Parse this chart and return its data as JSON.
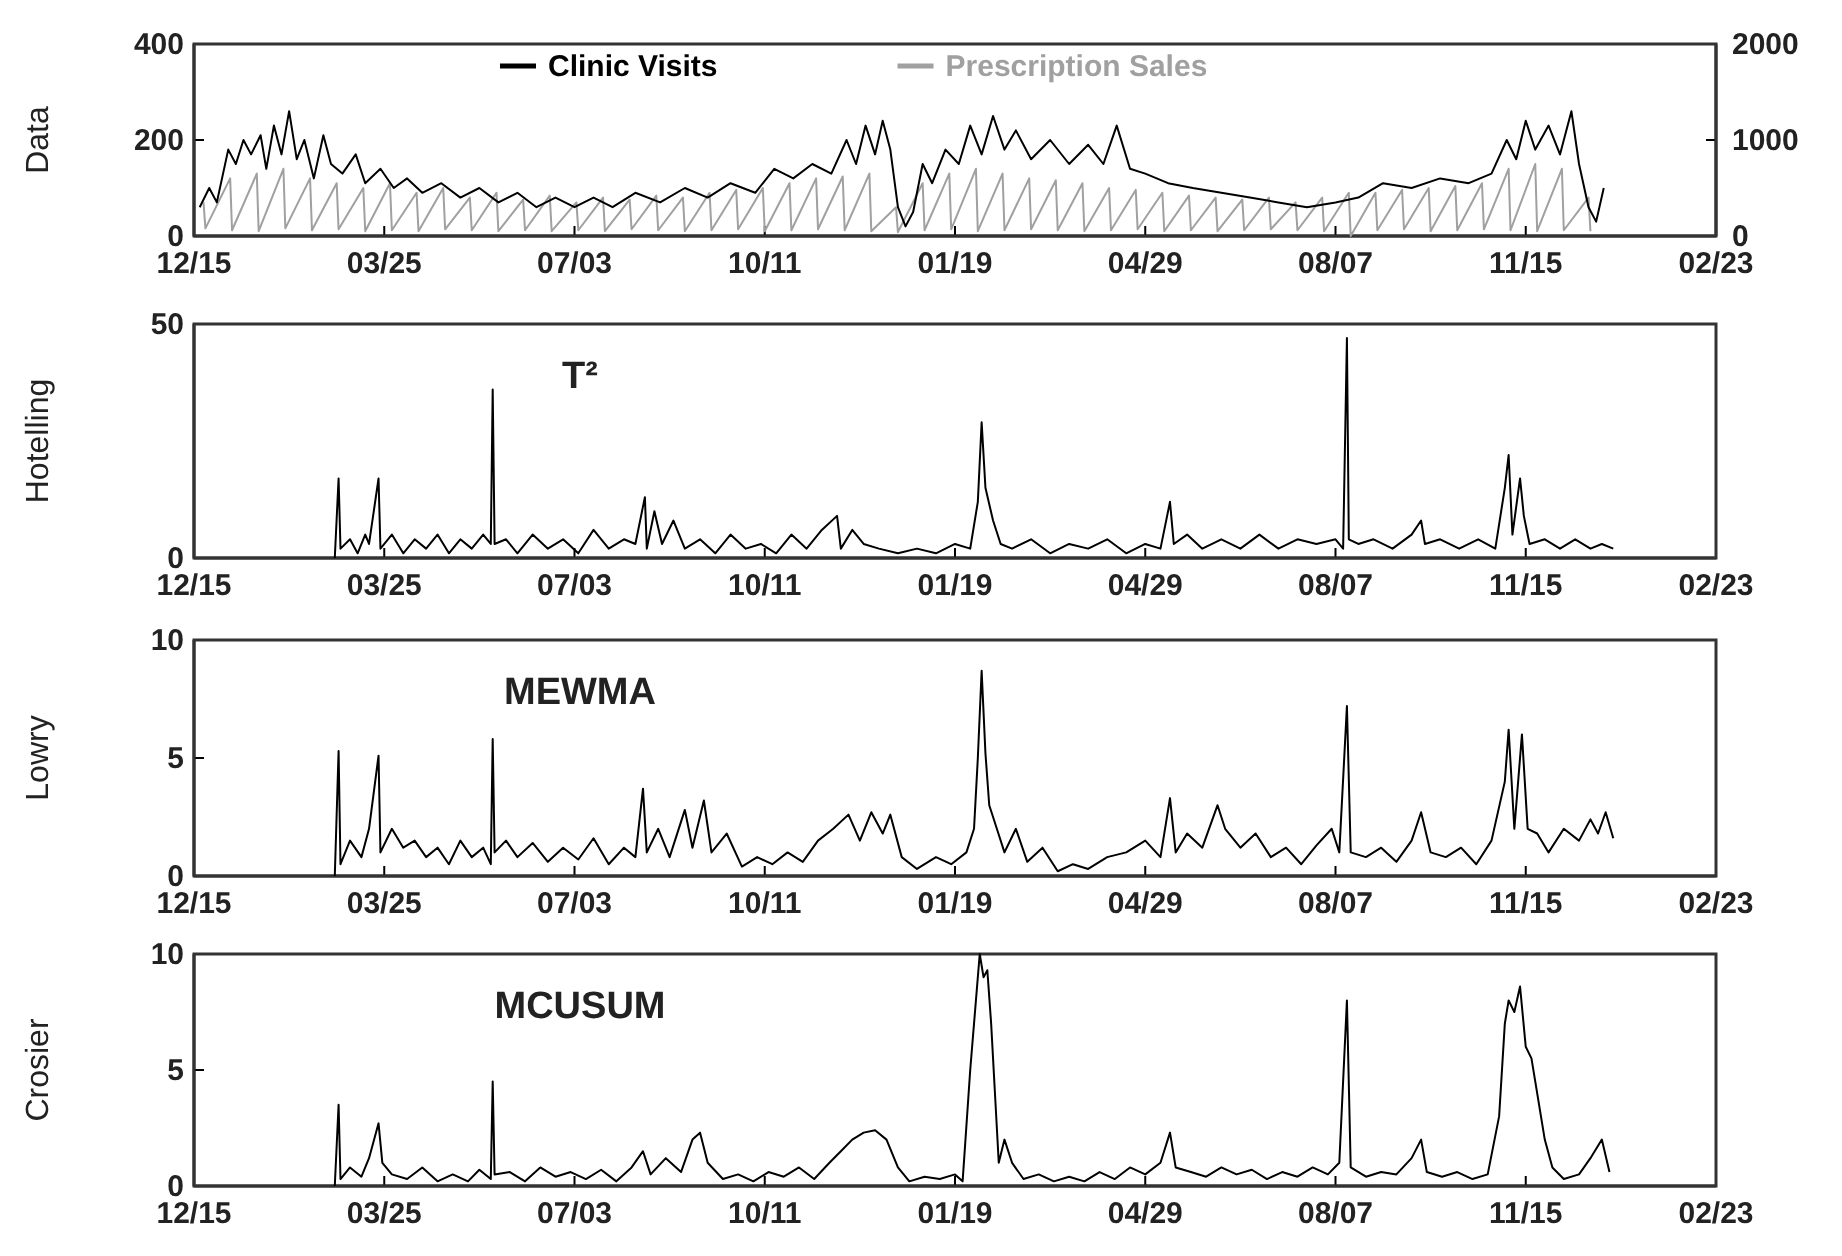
{
  "chart_data": [
    {
      "type": "line",
      "ylabel": "Data",
      "legend": "top",
      "xlim": [
        "2000-12-15",
        "2003-02-23"
      ],
      "xticks": [
        {
          "value": "2000-12-15",
          "label": "12/15"
        },
        {
          "value": "2001-03-25",
          "label": "03/25"
        },
        {
          "value": "2001-07-03",
          "label": "07/03"
        },
        {
          "value": "2001-10-11",
          "label": "10/11"
        },
        {
          "value": "2002-01-19",
          "label": "01/19"
        },
        {
          "value": "2002-04-29",
          "label": "04/29"
        },
        {
          "value": "2002-08-07",
          "label": "08/07"
        },
        {
          "value": "2002-11-15",
          "label": "11/15"
        },
        {
          "value": "2003-02-23",
          "label": "02/23"
        }
      ],
      "ylim": [
        0,
        400
      ],
      "yticks": [
        0,
        200,
        400
      ],
      "y2lim": [
        0,
        2000
      ],
      "y2ticks": [
        0,
        1000,
        2000
      ],
      "series": [
        {
          "name": "Prescription Sales",
          "color": "#a0a0a0",
          "axis": "y2",
          "x": [
            "2000-12-20",
            "2000-12-21",
            "2001-01-03",
            "2001-01-04",
            "2001-01-17",
            "2001-01-18",
            "2001-01-31",
            "2001-02-01",
            "2001-02-14",
            "2001-02-15",
            "2001-02-28",
            "2001-03-01",
            "2001-03-14",
            "2001-03-15",
            "2001-03-28",
            "2001-03-29",
            "2001-04-11",
            "2001-04-12",
            "2001-04-25",
            "2001-04-26",
            "2001-05-09",
            "2001-05-10",
            "2001-05-23",
            "2001-05-24",
            "2001-06-06",
            "2001-06-07",
            "2001-06-20",
            "2001-06-21",
            "2001-07-04",
            "2001-07-05",
            "2001-07-18",
            "2001-07-19",
            "2001-08-01",
            "2001-08-02",
            "2001-08-15",
            "2001-08-16",
            "2001-08-29",
            "2001-08-30",
            "2001-09-12",
            "2001-09-13",
            "2001-09-26",
            "2001-09-27",
            "2001-10-10",
            "2001-10-11",
            "2001-10-24",
            "2001-10-25",
            "2001-11-07",
            "2001-11-08",
            "2001-11-21",
            "2001-11-22",
            "2001-12-05",
            "2001-12-06",
            "2001-12-19",
            "2001-12-20",
            "2002-01-02",
            "2002-01-03",
            "2002-01-16",
            "2002-01-17",
            "2002-01-30",
            "2002-01-31",
            "2002-02-13",
            "2002-02-14",
            "2002-02-27",
            "2002-02-28",
            "2002-03-13",
            "2002-03-14",
            "2002-03-27",
            "2002-03-28",
            "2002-04-10",
            "2002-04-11",
            "2002-04-24",
            "2002-04-25",
            "2002-05-08",
            "2002-05-09",
            "2002-05-22",
            "2002-05-23",
            "2002-06-05",
            "2002-06-06",
            "2002-06-19",
            "2002-06-20",
            "2002-07-03",
            "2002-07-04",
            "2002-07-17",
            "2002-07-18",
            "2002-07-31",
            "2002-08-01",
            "2002-08-14",
            "2002-08-15",
            "2002-08-28",
            "2002-08-29",
            "2002-09-11",
            "2002-09-12",
            "2002-09-25",
            "2002-09-26",
            "2002-10-09",
            "2002-10-10",
            "2002-10-23",
            "2002-10-24",
            "2002-11-06",
            "2002-11-07",
            "2002-11-20",
            "2002-11-21",
            "2002-12-04",
            "2002-12-05",
            "2002-12-18",
            "2002-12-19"
          ],
          "values": [
            350,
            80,
            600,
            60,
            650,
            50,
            700,
            80,
            600,
            60,
            550,
            70,
            500,
            50,
            550,
            60,
            450,
            50,
            500,
            70,
            400,
            60,
            450,
            50,
            380,
            60,
            420,
            50,
            350,
            60,
            400,
            50,
            380,
            70,
            420,
            60,
            400,
            50,
            450,
            60,
            480,
            70,
            500,
            50,
            550,
            60,
            600,
            70,
            620,
            60,
            650,
            50,
            300,
            40,
            550,
            60,
            650,
            70,
            700,
            50,
            650,
            60,
            600,
            70,
            580,
            60,
            550,
            50,
            500,
            60,
            480,
            70,
            450,
            50,
            420,
            60,
            400,
            50,
            380,
            60,
            400,
            70,
            350,
            60,
            400,
            50,
            450,
            0,
            450,
            60,
            480,
            70,
            500,
            50,
            520,
            60,
            550,
            70,
            700,
            60,
            750,
            50,
            700,
            60,
            400,
            50
          ]
        },
        {
          "name": "Clinic Visits",
          "color": "#000000",
          "x": [
            "2000-12-18",
            "2000-12-23",
            "2000-12-27",
            "2001-01-02",
            "2001-01-06",
            "2001-01-10",
            "2001-01-14",
            "2001-01-19",
            "2001-01-22",
            "2001-01-26",
            "2001-01-30",
            "2001-02-03",
            "2001-02-07",
            "2001-02-11",
            "2001-02-16",
            "2001-02-21",
            "2001-02-25",
            "2001-03-03",
            "2001-03-10",
            "2001-03-15",
            "2001-03-23",
            "2001-03-30",
            "2001-04-06",
            "2001-04-14",
            "2001-04-24",
            "2001-05-04",
            "2001-05-14",
            "2001-05-24",
            "2001-06-03",
            "2001-06-13",
            "2001-06-23",
            "2001-07-03",
            "2001-07-13",
            "2001-07-23",
            "2001-08-04",
            "2001-08-17",
            "2001-08-30",
            "2001-09-11",
            "2001-09-23",
            "2001-10-06",
            "2001-10-16",
            "2001-10-26",
            "2001-11-05",
            "2001-11-15",
            "2001-11-23",
            "2001-11-28",
            "2001-12-03",
            "2001-12-08",
            "2001-12-12",
            "2001-12-16",
            "2001-12-20",
            "2001-12-24",
            "2001-12-28",
            "2002-01-02",
            "2002-01-07",
            "2002-01-14",
            "2002-01-21",
            "2002-01-27",
            "2002-02-02",
            "2002-02-08",
            "2002-02-14",
            "2002-02-20",
            "2002-02-28",
            "2002-03-10",
            "2002-03-20",
            "2002-03-30",
            "2002-04-07",
            "2002-04-14",
            "2002-04-21",
            "2002-04-29",
            "2002-05-11",
            "2002-05-24",
            "2002-06-08",
            "2002-06-23",
            "2002-07-08",
            "2002-07-23",
            "2002-08-07",
            "2002-08-19",
            "2002-09-01",
            "2002-09-16",
            "2002-10-01",
            "2002-10-16",
            "2002-10-28",
            "2002-11-05",
            "2002-11-10",
            "2002-11-15",
            "2002-11-20",
            "2002-11-27",
            "2002-12-03",
            "2002-12-09",
            "2002-12-13",
            "2002-12-18",
            "2002-12-22",
            "2002-12-26"
          ],
          "values": [
            60,
            100,
            70,
            180,
            150,
            200,
            170,
            210,
            140,
            230,
            170,
            260,
            160,
            200,
            120,
            210,
            150,
            130,
            170,
            110,
            140,
            100,
            120,
            90,
            110,
            80,
            100,
            70,
            90,
            60,
            80,
            60,
            80,
            60,
            90,
            70,
            100,
            80,
            110,
            90,
            140,
            120,
            150,
            130,
            200,
            150,
            230,
            170,
            240,
            180,
            60,
            20,
            50,
            150,
            110,
            180,
            150,
            230,
            170,
            250,
            180,
            220,
            160,
            200,
            150,
            190,
            150,
            230,
            140,
            130,
            110,
            100,
            90,
            80,
            70,
            60,
            70,
            80,
            110,
            100,
            120,
            110,
            130,
            200,
            160,
            240,
            180,
            230,
            170,
            260,
            150,
            60,
            30,
            100
          ]
        }
      ]
    },
    {
      "type": "line",
      "ylabel": "Hotelling",
      "annotations": [
        "T²"
      ],
      "xlim": [
        "2000-12-15",
        "2003-02-23"
      ],
      "xticks": [
        {
          "value": "2000-12-15",
          "label": "12/15"
        },
        {
          "value": "2001-03-25",
          "label": "03/25"
        },
        {
          "value": "2001-07-03",
          "label": "07/03"
        },
        {
          "value": "2001-10-11",
          "label": "10/11"
        },
        {
          "value": "2002-01-19",
          "label": "01/19"
        },
        {
          "value": "2002-04-29",
          "label": "04/29"
        },
        {
          "value": "2002-08-07",
          "label": "08/07"
        },
        {
          "value": "2002-11-15",
          "label": "11/15"
        },
        {
          "value": "2003-02-23",
          "label": "02/23"
        }
      ],
      "ylim": [
        0,
        50
      ],
      "yticks": [
        0,
        50
      ],
      "series": [
        {
          "color": "#000000",
          "x": [
            "2001-02-27",
            "2001-03-01",
            "2001-03-02",
            "2001-03-07",
            "2001-03-11",
            "2001-03-15",
            "2001-03-17",
            "2001-03-22",
            "2001-03-23",
            "2001-03-29",
            "2001-04-04",
            "2001-04-10",
            "2001-04-16",
            "2001-04-22",
            "2001-04-28",
            "2001-05-04",
            "2001-05-10",
            "2001-05-16",
            "2001-05-20",
            "2001-05-21",
            "2001-05-22",
            "2001-05-28",
            "2001-06-03",
            "2001-06-11",
            "2001-06-19",
            "2001-06-27",
            "2001-07-05",
            "2001-07-13",
            "2001-07-21",
            "2001-07-29",
            "2001-08-04",
            "2001-08-09",
            "2001-08-10",
            "2001-08-14",
            "2001-08-18",
            "2001-08-24",
            "2001-08-30",
            "2001-09-07",
            "2001-09-15",
            "2001-09-23",
            "2001-10-01",
            "2001-10-09",
            "2001-10-17",
            "2001-10-25",
            "2001-11-02",
            "2001-11-10",
            "2001-11-18",
            "2001-11-20",
            "2001-11-26",
            "2001-12-02",
            "2001-12-10",
            "2001-12-20",
            "2001-12-30",
            "2002-01-09",
            "2002-01-19",
            "2002-01-27",
            "2002-01-31",
            "2002-02-02",
            "2002-02-04",
            "2002-02-08",
            "2002-02-12",
            "2002-02-18",
            "2002-02-28",
            "2002-03-10",
            "2002-03-20",
            "2002-03-30",
            "2002-04-09",
            "2002-04-19",
            "2002-04-29",
            "2002-05-07",
            "2002-05-12",
            "2002-05-14",
            "2002-05-21",
            "2002-05-29",
            "2002-06-08",
            "2002-06-18",
            "2002-06-28",
            "2002-07-08",
            "2002-07-18",
            "2002-07-28",
            "2002-08-07",
            "2002-08-11",
            "2002-08-13",
            "2002-08-14",
            "2002-08-19",
            "2002-08-27",
            "2002-09-06",
            "2002-09-16",
            "2002-09-21",
            "2002-09-23",
            "2002-10-01",
            "2002-10-11",
            "2002-10-21",
            "2002-10-30",
            "2002-11-04",
            "2002-11-06",
            "2002-11-08",
            "2002-11-12",
            "2002-11-14",
            "2002-11-17",
            "2002-11-25",
            "2002-12-03",
            "2002-12-11",
            "2002-12-19",
            "2002-12-25",
            "2002-12-31"
          ],
          "values": [
            0,
            17,
            2,
            4,
            1,
            5,
            3,
            17,
            2,
            5,
            1,
            4,
            2,
            5,
            1,
            4,
            2,
            5,
            3,
            36,
            3,
            4,
            1,
            5,
            2,
            4,
            1,
            6,
            2,
            4,
            3,
            13,
            2,
            10,
            3,
            8,
            2,
            4,
            1,
            5,
            2,
            3,
            1,
            5,
            2,
            6,
            9,
            2,
            6,
            3,
            2,
            1,
            2,
            1,
            3,
            2,
            12,
            29,
            15,
            8,
            3,
            2,
            4,
            1,
            3,
            2,
            4,
            1,
            3,
            2,
            12,
            3,
            5,
            2,
            4,
            2,
            5,
            2,
            4,
            3,
            4,
            2,
            47,
            4,
            3,
            4,
            2,
            5,
            8,
            3,
            4,
            2,
            4,
            2,
            15,
            22,
            5,
            17,
            9,
            3,
            4,
            2,
            4,
            2,
            3,
            2
          ]
        }
      ]
    },
    {
      "type": "line",
      "ylabel": "Lowry",
      "annotations": [
        "MEWMA"
      ],
      "xlim": [
        "2000-12-15",
        "2003-02-23"
      ],
      "xticks": [
        {
          "value": "2000-12-15",
          "label": "12/15"
        },
        {
          "value": "2001-03-25",
          "label": "03/25"
        },
        {
          "value": "2001-07-03",
          "label": "07/03"
        },
        {
          "value": "2001-10-11",
          "label": "10/11"
        },
        {
          "value": "2002-01-19",
          "label": "01/19"
        },
        {
          "value": "2002-04-29",
          "label": "04/29"
        },
        {
          "value": "2002-08-07",
          "label": "08/07"
        },
        {
          "value": "2002-11-15",
          "label": "11/15"
        },
        {
          "value": "2003-02-23",
          "label": "02/23"
        }
      ],
      "ylim": [
        0,
        10
      ],
      "yticks": [
        0,
        5,
        10
      ],
      "series": [
        {
          "color": "#000000",
          "x": [
            "2001-02-27",
            "2001-03-01",
            "2001-03-02",
            "2001-03-07",
            "2001-03-13",
            "2001-03-17",
            "2001-03-22",
            "2001-03-23",
            "2001-03-29",
            "2001-04-04",
            "2001-04-10",
            "2001-04-16",
            "2001-04-22",
            "2001-04-28",
            "2001-05-04",
            "2001-05-10",
            "2001-05-16",
            "2001-05-20",
            "2001-05-21",
            "2001-05-22",
            "2001-05-28",
            "2001-06-03",
            "2001-06-11",
            "2001-06-19",
            "2001-06-27",
            "2001-07-05",
            "2001-07-13",
            "2001-07-21",
            "2001-07-29",
            "2001-08-04",
            "2001-08-08",
            "2001-08-10",
            "2001-08-16",
            "2001-08-22",
            "2001-08-30",
            "2001-09-03",
            "2001-09-09",
            "2001-09-13",
            "2001-09-21",
            "2001-09-29",
            "2001-10-07",
            "2001-10-15",
            "2001-10-23",
            "2001-10-31",
            "2001-11-08",
            "2001-11-16",
            "2001-11-24",
            "2001-11-30",
            "2001-12-06",
            "2001-12-12",
            "2001-12-16",
            "2001-12-22",
            "2001-12-30",
            "2002-01-09",
            "2002-01-17",
            "2002-01-25",
            "2002-01-29",
            "2002-01-31",
            "2002-02-02",
            "2002-02-04",
            "2002-02-06",
            "2002-02-10",
            "2002-02-14",
            "2002-02-20",
            "2002-02-26",
            "2002-03-06",
            "2002-03-14",
            "2002-03-22",
            "2002-03-30",
            "2002-04-09",
            "2002-04-19",
            "2002-04-29",
            "2002-05-07",
            "2002-05-12",
            "2002-05-15",
            "2002-05-21",
            "2002-05-29",
            "2002-06-06",
            "2002-06-10",
            "2002-06-18",
            "2002-06-26",
            "2002-07-04",
            "2002-07-12",
            "2002-07-20",
            "2002-07-28",
            "2002-08-05",
            "2002-08-09",
            "2002-08-13",
            "2002-08-15",
            "2002-08-23",
            "2002-08-31",
            "2002-09-08",
            "2002-09-16",
            "2002-09-21",
            "2002-09-26",
            "2002-10-04",
            "2002-10-12",
            "2002-10-20",
            "2002-10-28",
            "2002-11-04",
            "2002-11-06",
            "2002-11-09",
            "2002-11-13",
            "2002-11-16",
            "2002-11-21",
            "2002-11-27",
            "2002-12-05",
            "2002-12-13",
            "2002-12-19",
            "2002-12-23",
            "2002-12-27",
            "2002-12-31"
          ],
          "values": [
            0,
            5.3,
            0.5,
            1.5,
            0.8,
            2,
            5.1,
            1,
            2,
            1.2,
            1.5,
            0.8,
            1.2,
            0.5,
            1.5,
            0.8,
            1.2,
            0.5,
            5.8,
            1,
            1.5,
            0.8,
            1.4,
            0.6,
            1.2,
            0.7,
            1.6,
            0.5,
            1.2,
            0.8,
            3.7,
            1,
            2,
            0.8,
            2.8,
            1.2,
            3.2,
            1,
            1.8,
            0.4,
            0.8,
            0.5,
            1,
            0.6,
            1.5,
            2,
            2.6,
            1.5,
            2.7,
            1.8,
            2.6,
            0.8,
            0.3,
            0.8,
            0.5,
            1,
            2,
            5,
            8.7,
            5.2,
            3,
            2,
            1,
            2,
            0.6,
            1.2,
            0.2,
            0.5,
            0.3,
            0.8,
            1,
            1.5,
            0.8,
            3.3,
            1,
            1.8,
            1.2,
            3,
            2,
            1.2,
            1.8,
            0.8,
            1.2,
            0.5,
            1.3,
            2,
            1,
            7.2,
            1,
            0.8,
            1.2,
            0.6,
            1.5,
            2.7,
            1,
            0.8,
            1.2,
            0.5,
            1.5,
            4,
            6.2,
            2,
            6,
            2,
            1.8,
            1,
            2,
            1.5,
            2.4,
            1.8,
            2.7,
            1.6
          ]
        }
      ]
    },
    {
      "type": "line",
      "ylabel": "Crosier",
      "annotations": [
        "MCUSUM"
      ],
      "xlim": [
        "2000-12-15",
        "2003-02-23"
      ],
      "xticks": [
        {
          "value": "2000-12-15",
          "label": "12/15"
        },
        {
          "value": "2001-03-25",
          "label": "03/25"
        },
        {
          "value": "2001-07-03",
          "label": "07/03"
        },
        {
          "value": "2001-10-11",
          "label": "10/11"
        },
        {
          "value": "2002-01-19",
          "label": "01/19"
        },
        {
          "value": "2002-04-29",
          "label": "04/29"
        },
        {
          "value": "2002-08-07",
          "label": "08/07"
        },
        {
          "value": "2002-11-15",
          "label": "11/15"
        },
        {
          "value": "2003-02-23",
          "label": "02/23"
        }
      ],
      "ylim": [
        0,
        10
      ],
      "yticks": [
        0,
        5,
        10
      ],
      "series": [
        {
          "color": "#000000",
          "x": [
            "2001-02-27",
            "2001-03-01",
            "2001-03-02",
            "2001-03-07",
            "2001-03-13",
            "2001-03-17",
            "2001-03-22",
            "2001-03-24",
            "2001-03-29",
            "2001-04-06",
            "2001-04-14",
            "2001-04-22",
            "2001-04-30",
            "2001-05-08",
            "2001-05-14",
            "2001-05-20",
            "2001-05-21",
            "2001-05-22",
            "2001-05-30",
            "2001-06-07",
            "2001-06-15",
            "2001-06-23",
            "2001-07-01",
            "2001-07-09",
            "2001-07-17",
            "2001-07-25",
            "2001-08-02",
            "2001-08-08",
            "2001-08-12",
            "2001-08-20",
            "2001-08-28",
            "2001-09-03",
            "2001-09-07",
            "2001-09-11",
            "2001-09-19",
            "2001-09-27",
            "2001-10-05",
            "2001-10-13",
            "2001-10-21",
            "2001-10-29",
            "2001-11-06",
            "2001-11-14",
            "2001-11-20",
            "2001-11-26",
            "2001-12-02",
            "2001-12-08",
            "2001-12-14",
            "2001-12-20",
            "2001-12-26",
            "2002-01-03",
            "2002-01-11",
            "2002-01-19",
            "2002-01-23",
            "2002-01-27",
            "2002-01-30",
            "2002-02-01",
            "2002-02-03",
            "2002-02-05",
            "2002-02-07",
            "2002-02-09",
            "2002-02-11",
            "2002-02-14",
            "2002-02-18",
            "2002-02-24",
            "2002-03-04",
            "2002-03-12",
            "2002-03-20",
            "2002-03-28",
            "2002-04-05",
            "2002-04-13",
            "2002-04-21",
            "2002-04-29",
            "2002-05-07",
            "2002-05-12",
            "2002-05-15",
            "2002-05-23",
            "2002-05-31",
            "2002-06-08",
            "2002-06-16",
            "2002-06-24",
            "2002-07-02",
            "2002-07-10",
            "2002-07-18",
            "2002-07-26",
            "2002-08-03",
            "2002-08-09",
            "2002-08-13",
            "2002-08-15",
            "2002-08-23",
            "2002-08-31",
            "2002-09-08",
            "2002-09-16",
            "2002-09-21",
            "2002-09-24",
            "2002-10-02",
            "2002-10-10",
            "2002-10-18",
            "2002-10-26",
            "2002-11-01",
            "2002-11-04",
            "2002-11-06",
            "2002-11-09",
            "2002-11-12",
            "2002-11-15",
            "2002-11-18",
            "2002-11-21",
            "2002-11-25",
            "2002-11-29",
            "2002-12-05",
            "2002-12-13",
            "2002-12-19",
            "2002-12-25",
            "2002-12-29"
          ],
          "values": [
            0,
            3.5,
            0.3,
            0.8,
            0.4,
            1.2,
            2.7,
            1,
            0.5,
            0.3,
            0.8,
            0.2,
            0.5,
            0.2,
            0.7,
            0.3,
            4.5,
            0.5,
            0.6,
            0.2,
            0.8,
            0.4,
            0.6,
            0.3,
            0.7,
            0.2,
            0.8,
            1.5,
            0.5,
            1.2,
            0.6,
            2,
            2.3,
            1,
            0.3,
            0.5,
            0.2,
            0.6,
            0.4,
            0.8,
            0.3,
            1,
            1.5,
            2,
            2.3,
            2.4,
            2,
            0.8,
            0.2,
            0.4,
            0.3,
            0.5,
            0.2,
            5,
            8,
            10,
            9,
            9.3,
            7,
            4,
            1,
            2,
            1,
            0.3,
            0.5,
            0.2,
            0.4,
            0.2,
            0.6,
            0.3,
            0.8,
            0.5,
            1,
            2.3,
            0.8,
            0.6,
            0.4,
            0.8,
            0.5,
            0.7,
            0.3,
            0.6,
            0.4,
            0.8,
            0.5,
            1,
            8,
            0.8,
            0.4,
            0.6,
            0.5,
            1.2,
            2,
            0.6,
            0.4,
            0.6,
            0.3,
            0.5,
            3,
            7,
            8,
            7.5,
            8.6,
            6,
            5.5,
            4,
            2,
            0.8,
            0.3,
            0.5,
            1.2,
            2,
            0.6
          ]
        }
      ]
    }
  ]
}
